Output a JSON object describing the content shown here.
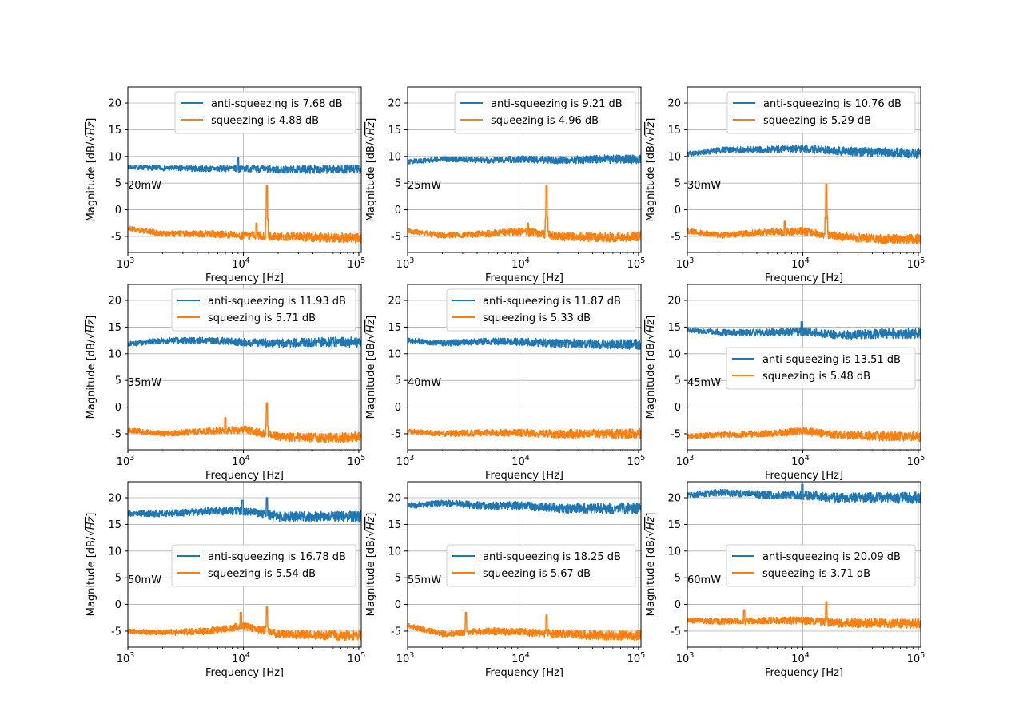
{
  "figure": {
    "x_label": "Frequency [Hz]",
    "y_label_plain": "Magnitude [dB/",
    "y_label_radicand": "Hz",
    "y_label_suffix": "]",
    "x_ticks": [
      {
        "base": "10",
        "exp": "3",
        "value": 1000
      },
      {
        "base": "10",
        "exp": "4",
        "value": 10000
      },
      {
        "base": "10",
        "exp": "5",
        "value": 100000
      }
    ],
    "y_ticks": [
      -5,
      0,
      5,
      10,
      15,
      20
    ]
  },
  "colors": {
    "anti_squeezing": "#1f77b4",
    "squeezing": "#ff7f0e",
    "grid": "#b0b0b0"
  },
  "chart_data": [
    {
      "type": "line",
      "power_label": "20mW",
      "x_scale": "log",
      "xlim": [
        1000,
        105000
      ],
      "ylim": [
        -8,
        23
      ],
      "grid": true,
      "legend_placement": "top-right",
      "series": [
        {
          "name": "anti-squeezing is 7.68 dB",
          "color": "#1f77b4",
          "x": [
            1000,
            2000,
            5000,
            10000,
            20000,
            50000,
            100000
          ],
          "y": [
            8,
            7.8,
            7.7,
            7.8,
            7.5,
            7.6,
            7.6
          ],
          "noise": 0.7,
          "spikes": [
            {
              "x": 9000,
              "y": 9.8
            }
          ]
        },
        {
          "name": "squeezing is 4.88 dB",
          "color": "#ff7f0e",
          "x": [
            1000,
            2000,
            5000,
            10000,
            20000,
            50000,
            100000
          ],
          "y": [
            -3.5,
            -4.5,
            -4.5,
            -4.8,
            -5,
            -5.2,
            -5.3
          ],
          "noise": 0.8,
          "spikes": [
            {
              "x": 16000,
              "y": 4.5
            },
            {
              "x": 13000,
              "y": -2.5
            }
          ]
        }
      ]
    },
    {
      "type": "line",
      "power_label": "25mW",
      "x_scale": "log",
      "xlim": [
        1000,
        105000
      ],
      "ylim": [
        -8,
        23
      ],
      "grid": true,
      "legend_placement": "top-right",
      "series": [
        {
          "name": "anti-squeezing is 9.21 dB",
          "color": "#1f77b4",
          "x": [
            1000,
            2000,
            5000,
            10000,
            20000,
            50000,
            100000
          ],
          "y": [
            9,
            9.5,
            9.3,
            9.5,
            9.3,
            9.5,
            9.4
          ],
          "noise": 0.7,
          "spikes": []
        },
        {
          "name": "squeezing is 4.96 dB",
          "color": "#ff7f0e",
          "x": [
            1000,
            2000,
            5000,
            10000,
            20000,
            50000,
            100000
          ],
          "y": [
            -4,
            -4.8,
            -4.5,
            -4,
            -5,
            -5.2,
            -5
          ],
          "noise": 0.8,
          "spikes": [
            {
              "x": 16000,
              "y": 4.5
            },
            {
              "x": 11000,
              "y": -2.5
            }
          ]
        }
      ]
    },
    {
      "type": "line",
      "power_label": "30mW",
      "x_scale": "log",
      "xlim": [
        1000,
        105000
      ],
      "ylim": [
        -8,
        23
      ],
      "grid": true,
      "legend_placement": "top-right",
      "series": [
        {
          "name": "anti-squeezing is 10.76 dB",
          "color": "#1f77b4",
          "x": [
            1000,
            2000,
            5000,
            10000,
            20000,
            50000,
            100000
          ],
          "y": [
            10.5,
            11.2,
            11.3,
            11.5,
            11,
            10.8,
            10.6
          ],
          "noise": 0.8,
          "spikes": []
        },
        {
          "name": "squeezing is 5.29 dB",
          "color": "#ff7f0e",
          "x": [
            1000,
            2000,
            5000,
            10000,
            20000,
            50000,
            100000
          ],
          "y": [
            -4,
            -4.8,
            -4.2,
            -4,
            -5,
            -5.5,
            -5.5
          ],
          "noise": 0.8,
          "spikes": [
            {
              "x": 16000,
              "y": 4.8
            },
            {
              "x": 7000,
              "y": -2.2
            }
          ]
        }
      ]
    },
    {
      "type": "line",
      "power_label": "35mW",
      "x_scale": "log",
      "xlim": [
        1000,
        105000
      ],
      "ylim": [
        -8,
        23
      ],
      "grid": true,
      "legend_placement": "top-right",
      "series": [
        {
          "name": "anti-squeezing is 11.93 dB",
          "color": "#1f77b4",
          "x": [
            1000,
            2000,
            5000,
            10000,
            20000,
            50000,
            100000
          ],
          "y": [
            11.8,
            12.5,
            12.5,
            12.2,
            12,
            12.2,
            12.2
          ],
          "noise": 0.8,
          "spikes": []
        },
        {
          "name": "squeezing is 5.71 dB",
          "color": "#ff7f0e",
          "x": [
            1000,
            2000,
            5000,
            10000,
            20000,
            50000,
            100000
          ],
          "y": [
            -4.3,
            -5,
            -4.5,
            -4.2,
            -5.5,
            -5.8,
            -5.5
          ],
          "noise": 0.8,
          "spikes": [
            {
              "x": 16000,
              "y": 0.8
            },
            {
              "x": 7000,
              "y": -2
            }
          ]
        }
      ]
    },
    {
      "type": "line",
      "power_label": "40mW",
      "x_scale": "log",
      "xlim": [
        1000,
        105000
      ],
      "ylim": [
        -8,
        23
      ],
      "grid": true,
      "legend_placement": "top-right",
      "series": [
        {
          "name": "anti-squeezing is 11.87 dB",
          "color": "#1f77b4",
          "x": [
            1000,
            2000,
            5000,
            10000,
            20000,
            50000,
            100000
          ],
          "y": [
            12.5,
            12,
            12.3,
            12.2,
            12,
            11.8,
            11.8
          ],
          "noise": 0.8,
          "spikes": []
        },
        {
          "name": "squeezing is 5.33 dB",
          "color": "#ff7f0e",
          "x": [
            1000,
            2000,
            5000,
            10000,
            20000,
            50000,
            100000
          ],
          "y": [
            -4.5,
            -5,
            -4.8,
            -4.8,
            -5,
            -5,
            -5
          ],
          "noise": 0.8,
          "spikes": []
        }
      ]
    },
    {
      "type": "line",
      "power_label": "45mW",
      "x_scale": "log",
      "xlim": [
        1000,
        105000
      ],
      "ylim": [
        -8,
        23
      ],
      "grid": true,
      "legend_placement": "center-right",
      "series": [
        {
          "name": "anti-squeezing is 13.51 dB",
          "color": "#1f77b4",
          "x": [
            1000,
            2000,
            5000,
            10000,
            20000,
            50000,
            100000
          ],
          "y": [
            14.5,
            14,
            14,
            14.2,
            13.5,
            13.8,
            13.8
          ],
          "noise": 0.8,
          "spikes": [
            {
              "x": 9800,
              "y": 16
            }
          ]
        },
        {
          "name": "squeezing is 5.48 dB",
          "color": "#ff7f0e",
          "x": [
            1000,
            2000,
            5000,
            10000,
            20000,
            50000,
            100000
          ],
          "y": [
            -5.5,
            -5.2,
            -5,
            -4.5,
            -5.2,
            -5.5,
            -5.5
          ],
          "noise": 0.8,
          "spikes": []
        }
      ]
    },
    {
      "type": "line",
      "power_label": "50mW",
      "x_scale": "log",
      "xlim": [
        1000,
        105000
      ],
      "ylim": [
        -8,
        23
      ],
      "grid": true,
      "legend_placement": "center-right",
      "series": [
        {
          "name": "anti-squeezing is 16.78 dB",
          "color": "#1f77b4",
          "x": [
            1000,
            2000,
            5000,
            10000,
            20000,
            50000,
            100000
          ],
          "y": [
            17,
            17,
            17.5,
            17.5,
            16.5,
            16.5,
            16.5
          ],
          "noise": 0.9,
          "spikes": [
            {
              "x": 9800,
              "y": 19.5
            },
            {
              "x": 16000,
              "y": 20
            }
          ]
        },
        {
          "name": "squeezing is 5.54 dB",
          "color": "#ff7f0e",
          "x": [
            1000,
            2000,
            5000,
            10000,
            20000,
            50000,
            100000
          ],
          "y": [
            -5,
            -5.3,
            -5,
            -4,
            -5.5,
            -5.8,
            -5.8
          ],
          "noise": 0.8,
          "spikes": [
            {
              "x": 16000,
              "y": -0.5
            },
            {
              "x": 9500,
              "y": -1.5
            }
          ]
        }
      ]
    },
    {
      "type": "line",
      "power_label": "55mW",
      "x_scale": "log",
      "xlim": [
        1000,
        105000
      ],
      "ylim": [
        -8,
        23
      ],
      "grid": true,
      "legend_placement": "center-right",
      "series": [
        {
          "name": "anti-squeezing is 18.25 dB",
          "color": "#1f77b4",
          "x": [
            1000,
            2000,
            5000,
            10000,
            20000,
            50000,
            100000
          ],
          "y": [
            18.5,
            19,
            18.5,
            18.5,
            18,
            18,
            18
          ],
          "noise": 0.9,
          "spikes": []
        },
        {
          "name": "squeezing is 5.67 dB",
          "color": "#ff7f0e",
          "x": [
            1000,
            2000,
            5000,
            10000,
            20000,
            50000,
            100000
          ],
          "y": [
            -4,
            -5.5,
            -5,
            -5.2,
            -5.5,
            -5.8,
            -5.8
          ],
          "noise": 0.8,
          "spikes": [
            {
              "x": 3200,
              "y": -1.5
            },
            {
              "x": 16000,
              "y": -2
            }
          ]
        }
      ]
    },
    {
      "type": "line",
      "power_label": "60mW",
      "x_scale": "log",
      "xlim": [
        1000,
        105000
      ],
      "ylim": [
        -8,
        23
      ],
      "grid": true,
      "legend_placement": "center-right",
      "series": [
        {
          "name": "anti-squeezing is 20.09 dB",
          "color": "#1f77b4",
          "x": [
            1000,
            2000,
            5000,
            10000,
            20000,
            50000,
            100000
          ],
          "y": [
            20.5,
            21,
            20.5,
            20.5,
            20,
            20,
            20
          ],
          "noise": 0.9,
          "spikes": [
            {
              "x": 9900,
              "y": 22.5
            }
          ]
        },
        {
          "name": "squeezing is 3.71 dB",
          "color": "#ff7f0e",
          "x": [
            1000,
            2000,
            5000,
            10000,
            20000,
            50000,
            100000
          ],
          "y": [
            -3,
            -3.2,
            -3,
            -3,
            -3.5,
            -3.5,
            -3.5
          ],
          "noise": 0.8,
          "spikes": [
            {
              "x": 16000,
              "y": 0.5
            },
            {
              "x": 3100,
              "y": -1
            }
          ]
        }
      ]
    }
  ]
}
